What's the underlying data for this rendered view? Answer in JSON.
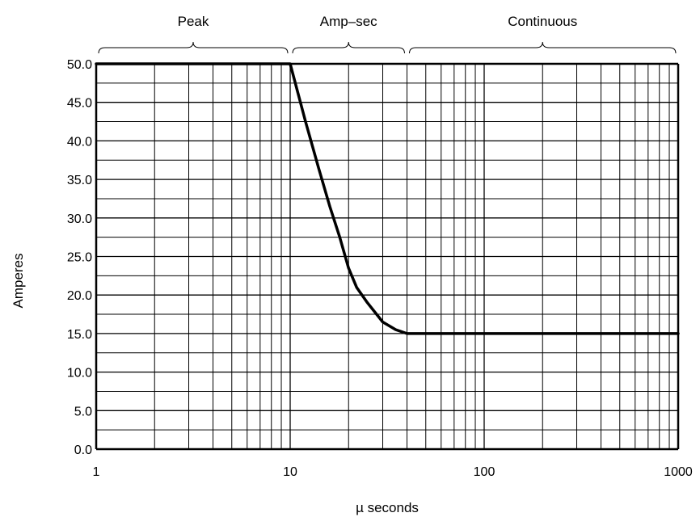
{
  "chart_data": {
    "type": "line",
    "xscale": "log",
    "xlim": [
      1,
      1000
    ],
    "ylim": [
      0,
      50
    ],
    "xlabel": "µ seconds",
    "ylabel": "Amperes",
    "x_ticks": [
      {
        "value": 1,
        "label": "1"
      },
      {
        "value": 10,
        "label": "10"
      },
      {
        "value": 100,
        "label": "100"
      },
      {
        "value": 1000,
        "label": "1000"
      }
    ],
    "y_ticks": [
      {
        "value": 0,
        "label": "0.0"
      },
      {
        "value": 5,
        "label": "5.0"
      },
      {
        "value": 10,
        "label": "10.0"
      },
      {
        "value": 15,
        "label": "15.0"
      },
      {
        "value": 20,
        "label": "20.0"
      },
      {
        "value": 25,
        "label": "25.0"
      },
      {
        "value": 30,
        "label": "30.0"
      },
      {
        "value": 35,
        "label": "35.0"
      },
      {
        "value": 40,
        "label": "40.0"
      },
      {
        "value": 45,
        "label": "45.0"
      },
      {
        "value": 50,
        "label": "50.0"
      }
    ],
    "grid": true,
    "y_minor_step": 2.5,
    "regions": [
      {
        "label": "Peak",
        "x_start": 1,
        "x_end": 10
      },
      {
        "label": "Amp–sec",
        "x_start": 10,
        "x_end": 40
      },
      {
        "label": "Continuous",
        "x_start": 40,
        "x_end": 1000
      }
    ],
    "series": [
      {
        "x": [
          1,
          10,
          12,
          14,
          16,
          18,
          20,
          22,
          25,
          30,
          35,
          40,
          1000
        ],
        "y": [
          50,
          50,
          42.5,
          36.5,
          31.5,
          27.5,
          23.5,
          21,
          19,
          16.5,
          15.5,
          15,
          15
        ]
      }
    ]
  }
}
